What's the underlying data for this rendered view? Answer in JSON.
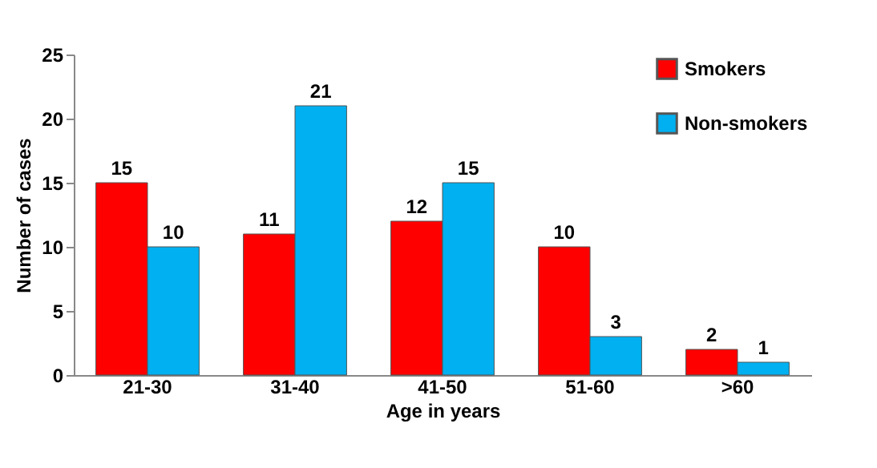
{
  "chart_data": {
    "type": "bar",
    "xlabel": "Age in years",
    "ylabel": "Number of cases",
    "categories": [
      "21-30",
      "31-40",
      "41-50",
      "51-60",
      ">60"
    ],
    "series": [
      {
        "name": "Smokers",
        "color": "#ff0000",
        "values": [
          15,
          11,
          12,
          10,
          2
        ]
      },
      {
        "name": "Non-smokers",
        "color": "#00b0f0",
        "values": [
          10,
          21,
          15,
          3,
          1
        ]
      }
    ],
    "ylim": [
      0,
      25
    ],
    "yticks": [
      0,
      5,
      10,
      15,
      20,
      25
    ],
    "data_labels": true,
    "legend": "top right",
    "grid": false
  }
}
